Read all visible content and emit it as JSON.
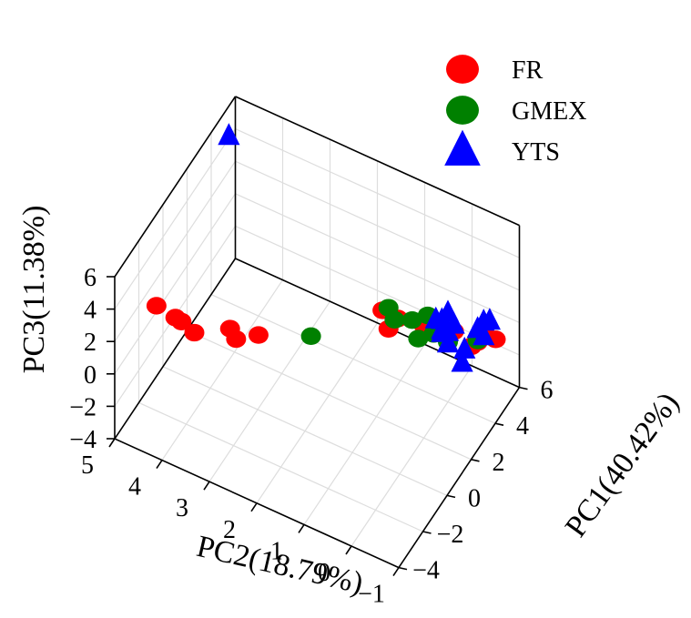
{
  "chart_data": {
    "type": "scatter",
    "dimensions": 3,
    "axes": {
      "x": {
        "label": "PC2(18.79%)",
        "range": [
          5,
          -1
        ],
        "ticks": [
          "5",
          "4",
          "3",
          "2",
          "1",
          "0",
          "−1"
        ]
      },
      "y": {
        "label": "PC1(40.42%)",
        "range": [
          -4,
          6
        ],
        "ticks": [
          "−4",
          "−2",
          "0",
          "2",
          "4",
          "6"
        ]
      },
      "z": {
        "label": "PC3(11.38%)",
        "range": [
          -4,
          6
        ],
        "ticks": [
          "−4",
          "−2",
          "0",
          "2",
          "4",
          "6"
        ]
      }
    },
    "grid": true,
    "legend": {
      "position": "top-right"
    },
    "series": [
      {
        "name": "FR",
        "color": "#ff0000",
        "marker": "circle",
        "points": [
          [
            4.5,
            -2.5,
            3.2
          ],
          [
            4.1,
            -2.5,
            3.0
          ],
          [
            3.7,
            -2.5,
            2.6
          ],
          [
            4.1,
            -2.0,
            2.2
          ],
          [
            3.2,
            -1.5,
            2.4
          ],
          [
            2.6,
            -1.5,
            2.8
          ],
          [
            3.2,
            -1.0,
            1.2
          ],
          [
            1.0,
            2.5,
            2.0
          ],
          [
            0.8,
            3.0,
            1.2
          ],
          [
            1.0,
            3.0,
            0.3
          ],
          [
            0.0,
            4.0,
            0.3
          ],
          [
            0.5,
            4.0,
            0.0
          ],
          [
            0.5,
            4.0,
            0.2
          ],
          [
            -0.5,
            4.0,
            0.1
          ],
          [
            0.0,
            4.5,
            -0.2
          ],
          [
            -0.5,
            4.5,
            -0.2
          ],
          [
            -0.5,
            5.0,
            0.0
          ],
          [
            -0.5,
            6.0,
            -1.7
          ]
        ]
      },
      {
        "name": "GMEX",
        "color": "#008000",
        "marker": "circle",
        "points": [
          [
            2.0,
            0.5,
            1.3
          ],
          [
            1.0,
            3.0,
            1.6
          ],
          [
            0.5,
            3.0,
            1.5
          ],
          [
            0.3,
            3.5,
            1.5
          ],
          [
            1.0,
            3.5,
            0.3
          ],
          [
            0.5,
            3.5,
            -0.2
          ],
          [
            0.3,
            4.0,
            -0.2
          ],
          [
            0.0,
            4.0,
            -0.3
          ],
          [
            -0.5,
            4.5,
            -0.1
          ],
          [
            0.0,
            4.0,
            -0.2
          ]
        ]
      },
      {
        "name": "YTS",
        "color": "#0000ff",
        "marker": "triangle",
        "points": [
          [
            4.5,
            3.5,
            7.0
          ],
          [
            0.0,
            3.0,
            2.2
          ],
          [
            0.0,
            3.5,
            1.6
          ],
          [
            0.0,
            4.0,
            1.5
          ],
          [
            0.0,
            3.5,
            1.0
          ],
          [
            0.0,
            3.5,
            0.8
          ],
          [
            0.0,
            4.0,
            0.3
          ],
          [
            0.0,
            4.5,
            0.2
          ],
          [
            -0.5,
            4.5,
            0.6
          ],
          [
            -0.5,
            5.0,
            0.5
          ],
          [
            -0.5,
            5.0,
            -0.4
          ],
          [
            -0.5,
            5.5,
            0.0
          ],
          [
            0.0,
            4.0,
            -0.4
          ],
          [
            -0.3,
            4.2,
            -0.6
          ],
          [
            -0.3,
            4.0,
            -1.2
          ]
        ]
      }
    ]
  }
}
